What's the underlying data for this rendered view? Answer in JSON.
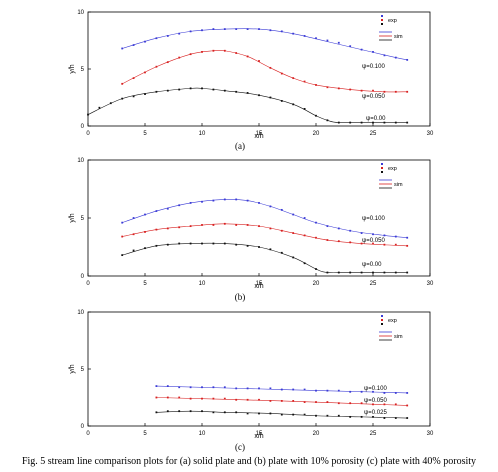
{
  "caption": "Fig. 5 stream line comparison plots for (a) solid plate and (b) plate with 10% porosity (c) plate with 40% porosity",
  "colors": {
    "blue": "#3b3bd6",
    "red": "#d82020",
    "black": "#111111"
  },
  "chart_data": [
    {
      "type": "line",
      "panel_label": "(a)",
      "xlabel": "x/h",
      "ylabel": "y/h",
      "xlim": [
        0,
        30
      ],
      "ylim": [
        0,
        10
      ],
      "xticks": [
        "0",
        "5",
        "10",
        "15",
        "20",
        "25",
        "30"
      ],
      "yticks": [
        "0",
        "5",
        "10"
      ],
      "legend": {
        "placement": "top-right",
        "labels": [
          "exp",
          "sim"
        ]
      },
      "series": [
        {
          "name": "ψ=0.100",
          "color": "blue",
          "exp_x": [
            3,
            4,
            5,
            6,
            7,
            8,
            9,
            10,
            11,
            12,
            13,
            14,
            15,
            16,
            17,
            18,
            19,
            20,
            21,
            22,
            23,
            24,
            25,
            26,
            27,
            28
          ],
          "exp_y": [
            6.8,
            7.1,
            7.4,
            7.7,
            7.9,
            8.1,
            8.3,
            8.4,
            8.5,
            8.5,
            8.5,
            8.5,
            8.5,
            8.4,
            8.3,
            8.1,
            7.9,
            7.7,
            7.5,
            7.3,
            7.0,
            6.7,
            6.5,
            6.2,
            6.0,
            5.8
          ],
          "sim_x": [
            3,
            6,
            9,
            12,
            15,
            18,
            21,
            24,
            27,
            28
          ],
          "sim_y": [
            6.8,
            7.7,
            8.3,
            8.5,
            8.5,
            8.1,
            7.4,
            6.7,
            6.0,
            5.8
          ]
        },
        {
          "name": "ψ=0.050",
          "color": "red",
          "exp_x": [
            3,
            4,
            5,
            6,
            7,
            8,
            9,
            10,
            11,
            12,
            13,
            14,
            15,
            16,
            17,
            18,
            19,
            20,
            21,
            22,
            23,
            24,
            25,
            26,
            27,
            28
          ],
          "exp_y": [
            3.7,
            4.2,
            4.7,
            5.2,
            5.6,
            6.0,
            6.3,
            6.5,
            6.6,
            6.6,
            6.4,
            6.1,
            5.7,
            5.1,
            4.6,
            4.2,
            3.9,
            3.6,
            3.4,
            3.3,
            3.2,
            3.1,
            3.1,
            3.0,
            3.0,
            3.0
          ],
          "sim_x": [
            3,
            6,
            9,
            11,
            12,
            14,
            16,
            18,
            20,
            23,
            26,
            28
          ],
          "sim_y": [
            3.7,
            5.2,
            6.3,
            6.6,
            6.6,
            6.1,
            5.1,
            4.2,
            3.6,
            3.2,
            3.0,
            3.0
          ]
        },
        {
          "name": "ψ=0.00",
          "color": "black",
          "exp_x": [
            0,
            1,
            2,
            3,
            4,
            5,
            6,
            7,
            8,
            9,
            10,
            11,
            12,
            13,
            14,
            15,
            16,
            17,
            18,
            19,
            20,
            21,
            22,
            23,
            24,
            25,
            26,
            27,
            28
          ],
          "exp_y": [
            1.0,
            1.6,
            2.0,
            2.4,
            2.6,
            2.8,
            3.0,
            3.1,
            3.2,
            3.3,
            3.3,
            3.2,
            3.1,
            3.0,
            2.9,
            2.7,
            2.5,
            2.2,
            1.9,
            1.5,
            0.9,
            0.5,
            0.3,
            0.3,
            0.3,
            0.3,
            0.3,
            0.3,
            0.3
          ],
          "sim_x": [
            0,
            3,
            6,
            9,
            10,
            12,
            15,
            18,
            20,
            21,
            22,
            25,
            28
          ],
          "sim_y": [
            1.0,
            2.4,
            3.0,
            3.3,
            3.3,
            3.1,
            2.7,
            1.9,
            0.9,
            0.5,
            0.3,
            0.3,
            0.3
          ]
        }
      ]
    },
    {
      "type": "line",
      "panel_label": "(b)",
      "xlabel": "x/h",
      "ylabel": "y/h",
      "xlim": [
        0,
        30
      ],
      "ylim": [
        0,
        10
      ],
      "xticks": [
        "0",
        "5",
        "10",
        "15",
        "20",
        "25",
        "30"
      ],
      "yticks": [
        "0",
        "5",
        "10"
      ],
      "legend": {
        "placement": "top-right",
        "labels": [
          "exp",
          "sim"
        ]
      },
      "series": [
        {
          "name": "ψ=0.100",
          "color": "blue",
          "exp_x": [
            3,
            4,
            5,
            6,
            7,
            8,
            9,
            10,
            11,
            12,
            13,
            14,
            15,
            16,
            17,
            18,
            19,
            20,
            21,
            22,
            23,
            24,
            25,
            26,
            27,
            28
          ],
          "exp_y": [
            4.6,
            5.0,
            5.3,
            5.6,
            5.8,
            6.1,
            6.3,
            6.4,
            6.5,
            6.6,
            6.6,
            6.5,
            6.3,
            6.0,
            5.7,
            5.3,
            5.0,
            4.6,
            4.3,
            4.1,
            3.9,
            3.7,
            3.6,
            3.5,
            3.4,
            3.3
          ],
          "sim_x": [
            3,
            6,
            9,
            12,
            14,
            16,
            18,
            20,
            23,
            26,
            28
          ],
          "sim_y": [
            4.6,
            5.6,
            6.3,
            6.6,
            6.5,
            6.0,
            5.3,
            4.6,
            3.9,
            3.5,
            3.3
          ]
        },
        {
          "name": "ψ=0.050",
          "color": "red",
          "exp_x": [
            3,
            4,
            5,
            6,
            7,
            8,
            9,
            10,
            11,
            12,
            13,
            14,
            15,
            16,
            17,
            18,
            19,
            20,
            21,
            22,
            23,
            24,
            25,
            26,
            27,
            28
          ],
          "exp_y": [
            3.4,
            3.6,
            3.8,
            4.0,
            4.1,
            4.2,
            4.3,
            4.4,
            4.4,
            4.5,
            4.4,
            4.4,
            4.3,
            4.1,
            3.9,
            3.7,
            3.5,
            3.3,
            3.1,
            3.0,
            2.9,
            2.8,
            2.8,
            2.7,
            2.7,
            2.6
          ],
          "sim_x": [
            3,
            6,
            9,
            12,
            15,
            18,
            21,
            24,
            28
          ],
          "sim_y": [
            3.4,
            4.0,
            4.3,
            4.5,
            4.3,
            3.7,
            3.1,
            2.8,
            2.6
          ]
        },
        {
          "name": "ψ=0.00",
          "color": "black",
          "exp_x": [
            3,
            4,
            5,
            6,
            7,
            8,
            9,
            10,
            11,
            12,
            13,
            14,
            15,
            16,
            17,
            18,
            19,
            20,
            21,
            22,
            23,
            24,
            25,
            26,
            27,
            28
          ],
          "exp_y": [
            1.8,
            2.2,
            2.4,
            2.6,
            2.7,
            2.8,
            2.8,
            2.8,
            2.8,
            2.8,
            2.7,
            2.6,
            2.5,
            2.3,
            2.0,
            1.6,
            1.1,
            0.6,
            0.3,
            0.3,
            0.3,
            0.3,
            0.3,
            0.3,
            0.3,
            0.3
          ],
          "sim_x": [
            3,
            6,
            9,
            12,
            15,
            18,
            20,
            21,
            23,
            28
          ],
          "sim_y": [
            1.8,
            2.6,
            2.8,
            2.8,
            2.5,
            1.6,
            0.6,
            0.3,
            0.3,
            0.3
          ]
        }
      ]
    },
    {
      "type": "line",
      "panel_label": "(c)",
      "xlabel": "x/h",
      "ylabel": "y/h",
      "xlim": [
        0,
        30
      ],
      "ylim": [
        0,
        10
      ],
      "xticks": [
        "0",
        "5",
        "10",
        "15",
        "20",
        "25",
        "30"
      ],
      "yticks": [
        "0",
        "5",
        "10"
      ],
      "legend": {
        "placement": "top-right",
        "labels": [
          "exp",
          "sim"
        ]
      },
      "series": [
        {
          "name": "ψ=0.100",
          "color": "blue",
          "exp_x": [
            6,
            7,
            8,
            9,
            10,
            11,
            12,
            13,
            14,
            15,
            16,
            17,
            18,
            19,
            20,
            21,
            22,
            23,
            24,
            25,
            26,
            27,
            28
          ],
          "exp_y": [
            3.5,
            3.5,
            3.4,
            3.4,
            3.4,
            3.4,
            3.4,
            3.3,
            3.3,
            3.3,
            3.3,
            3.2,
            3.2,
            3.2,
            3.1,
            3.1,
            3.1,
            3.0,
            3.0,
            3.0,
            2.9,
            2.9,
            2.9
          ],
          "sim_x": [
            6,
            17,
            28
          ],
          "sim_y": [
            3.5,
            3.2,
            2.9
          ]
        },
        {
          "name": "ψ=0.050",
          "color": "red",
          "exp_x": [
            6,
            7,
            8,
            9,
            10,
            11,
            12,
            13,
            14,
            15,
            16,
            17,
            18,
            19,
            20,
            21,
            22,
            23,
            24,
            25,
            26,
            27,
            28
          ],
          "exp_y": [
            2.5,
            2.5,
            2.5,
            2.4,
            2.4,
            2.4,
            2.4,
            2.3,
            2.3,
            2.3,
            2.2,
            2.2,
            2.2,
            2.1,
            2.1,
            2.1,
            2.0,
            2.0,
            2.0,
            1.9,
            1.9,
            1.9,
            1.8
          ],
          "sim_x": [
            6,
            17,
            28
          ],
          "sim_y": [
            2.5,
            2.2,
            1.8
          ]
        },
        {
          "name": "ψ=0.025",
          "color": "black",
          "exp_x": [
            6,
            7,
            8,
            9,
            10,
            11,
            12,
            13,
            14,
            15,
            16,
            17,
            18,
            19,
            20,
            21,
            22,
            23,
            24,
            25,
            26,
            27,
            28
          ],
          "exp_y": [
            1.2,
            1.3,
            1.3,
            1.3,
            1.3,
            1.2,
            1.2,
            1.2,
            1.1,
            1.1,
            1.1,
            1.0,
            1.0,
            1.0,
            0.9,
            0.9,
            0.9,
            0.8,
            0.8,
            0.8,
            0.7,
            0.7,
            0.7
          ],
          "sim_x": [
            6,
            9,
            12,
            16,
            20,
            24,
            28
          ],
          "sim_y": [
            1.2,
            1.3,
            1.2,
            1.1,
            0.9,
            0.8,
            0.7
          ]
        }
      ]
    }
  ]
}
